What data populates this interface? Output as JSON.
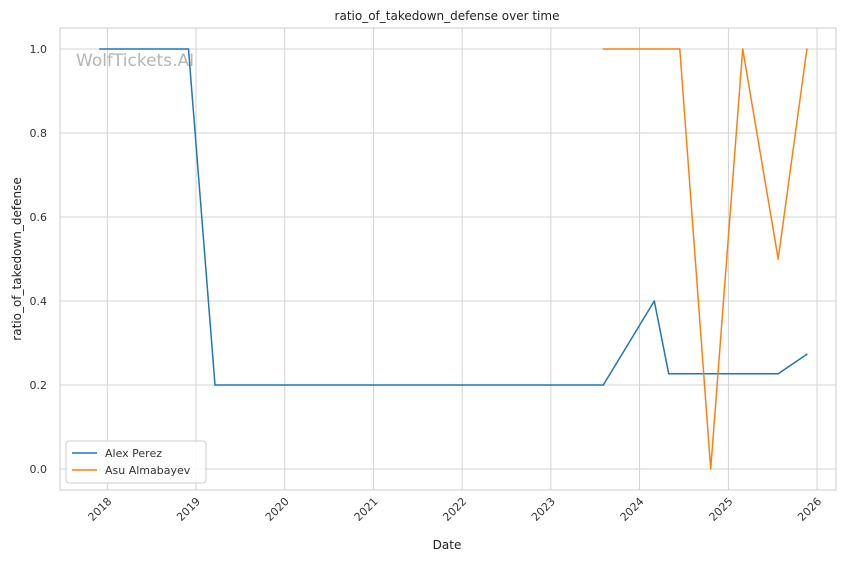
{
  "chart_data": {
    "type": "line",
    "title": "ratio_of_takedown_defense over time",
    "xlabel": "Date",
    "ylabel": "ratio_of_takedown_defense",
    "watermark": "WolfTickets.AI",
    "x_axis": "date",
    "xlim": [
      "2017-06-20",
      "2026-03-20"
    ],
    "ylim": [
      -0.05,
      1.05
    ],
    "xticks": [
      "2018-01-01",
      "2019-01-01",
      "2020-01-01",
      "2021-01-01",
      "2022-01-01",
      "2023-01-01",
      "2024-01-01",
      "2025-01-01",
      "2026-01-01"
    ],
    "xtick_labels": [
      "2018",
      "2019",
      "2020",
      "2021",
      "2022",
      "2023",
      "2024",
      "2025",
      "2026"
    ],
    "yticks": [
      0.0,
      0.2,
      0.4,
      0.6,
      0.8,
      1.0
    ],
    "ytick_labels": [
      "0.0",
      "0.2",
      "0.4",
      "0.6",
      "0.8",
      "1.0"
    ],
    "grid": true,
    "legend_position": "lower-left",
    "series": [
      {
        "name": "Alex Perez",
        "color": "#1f77b4",
        "points": [
          [
            "2017-12-01",
            1.0
          ],
          [
            "2018-12-01",
            1.0
          ],
          [
            "2019-03-20",
            0.2
          ],
          [
            "2023-08-05",
            0.2
          ],
          [
            "2024-03-02",
            0.4
          ],
          [
            "2024-04-30",
            0.227
          ],
          [
            "2025-07-25",
            0.227
          ],
          [
            "2025-11-20",
            0.273
          ]
        ]
      },
      {
        "name": "Asu Almabayev",
        "color": "#ff7f0e",
        "points": [
          [
            "2023-08-05",
            1.0
          ],
          [
            "2024-06-15",
            1.0
          ],
          [
            "2024-10-20",
            0.0
          ],
          [
            "2025-03-01",
            1.0
          ],
          [
            "2025-07-25",
            0.5
          ],
          [
            "2025-11-20",
            1.0
          ]
        ]
      }
    ]
  }
}
